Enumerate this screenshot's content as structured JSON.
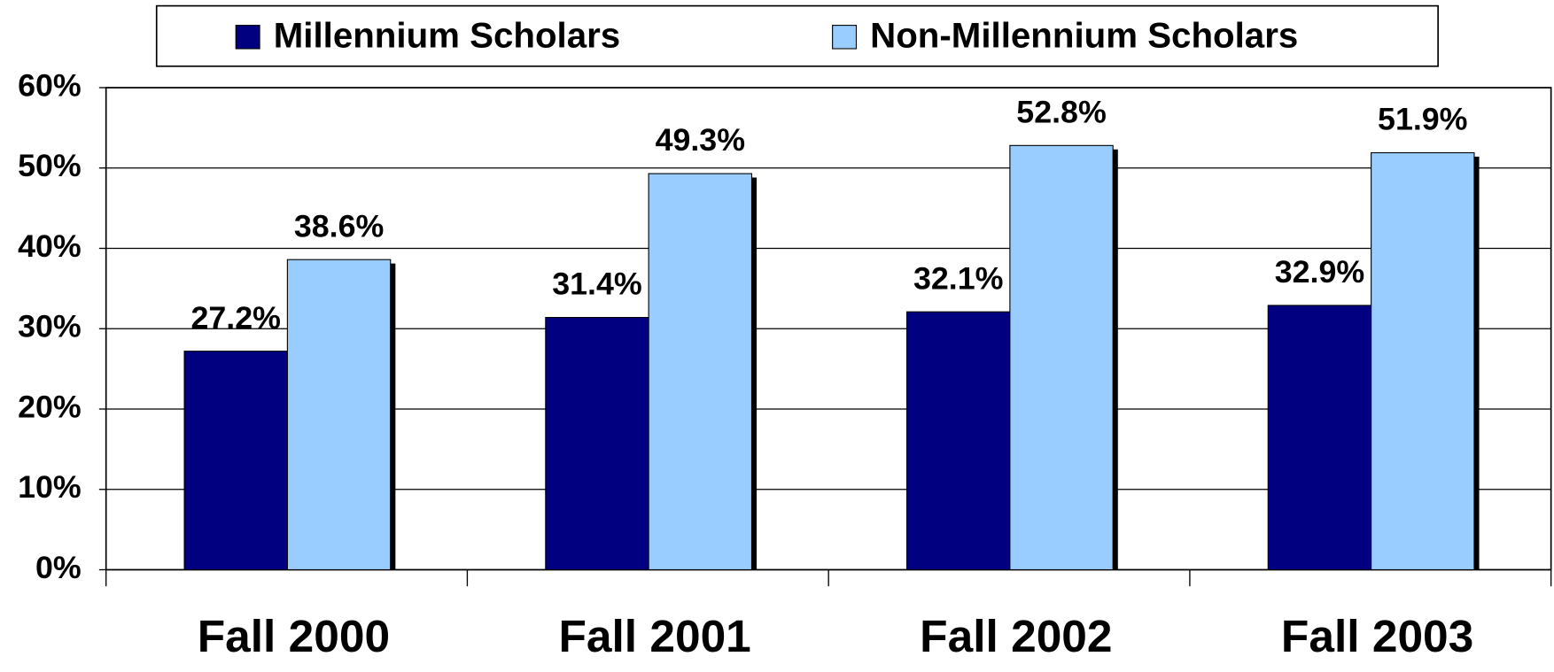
{
  "chart_data": {
    "type": "bar",
    "categories": [
      "Fall 2000",
      "Fall 2001",
      "Fall 2002",
      "Fall 2003"
    ],
    "series": [
      {
        "name": "Millennium Scholars",
        "color": "#000080",
        "values": [
          27.2,
          31.4,
          32.1,
          32.9
        ],
        "value_labels": [
          "27.2%",
          "31.4%",
          "32.1%",
          "32.9%"
        ]
      },
      {
        "name": "Non-Millennium Scholars",
        "color": "#99ccff",
        "values": [
          38.6,
          49.3,
          52.8,
          51.9
        ],
        "value_labels": [
          "38.6%",
          "49.3%",
          "52.8%",
          "51.9%"
        ]
      }
    ],
    "ylim": [
      0,
      60
    ],
    "yticks": [
      {
        "value": 0,
        "label": "0%"
      },
      {
        "value": 10,
        "label": "10%"
      },
      {
        "value": 20,
        "label": "20%"
      },
      {
        "value": 30,
        "label": "30%"
      },
      {
        "value": 40,
        "label": "40%"
      },
      {
        "value": 50,
        "label": "50%"
      },
      {
        "value": 60,
        "label": "60%"
      }
    ],
    "grid": true,
    "legend": "top"
  }
}
